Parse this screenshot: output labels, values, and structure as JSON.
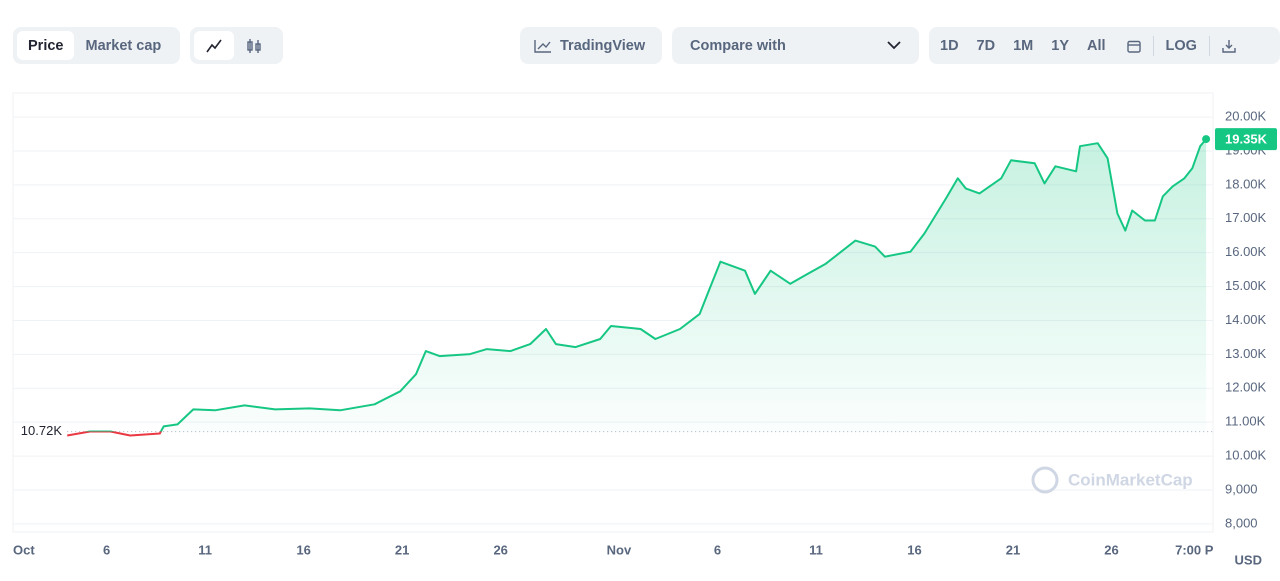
{
  "toolbar": {
    "tabs": [
      "Price",
      "Market cap"
    ],
    "tradingview": "TradingView",
    "compare": "Compare with",
    "ranges": [
      "1D",
      "7D",
      "1M",
      "1Y",
      "All"
    ],
    "log": "LOG"
  },
  "chart_data": {
    "type": "line",
    "color": "#16c784",
    "down_color": "#ea3943",
    "grid": true,
    "x": [
      3.0,
      4.16,
      5.2,
      6.2,
      7.7,
      7.9,
      8.6,
      9.4,
      10.5,
      12.0,
      13.55,
      15.3,
      16.85,
      18.6,
      19.9,
      20.7,
      21.2,
      21.9,
      23.45,
      24.3,
      25.5,
      26.5,
      27.3,
      27.8,
      28.8,
      30.05,
      30.6,
      32.1,
      32.85,
      34.1,
      35.1,
      35.6,
      36.15,
      37.4,
      37.9,
      38.7,
      39.7,
      40.5,
      41.5,
      43.0,
      44.0,
      44.5,
      45.8,
      46.5,
      47.6,
      48.2,
      48.6,
      49.3,
      50.4,
      50.9,
      52.1,
      52.6,
      53.15,
      54.2,
      54.4,
      55.3,
      55.8,
      56.3,
      56.7,
      57.05,
      57.7,
      58.2,
      58.6,
      59.1,
      59.7,
      60.1,
      60.5,
      60.8
    ],
    "values": [
      10607,
      10726,
      10726,
      10607,
      10667,
      10874,
      10933,
      11378,
      11350,
      11496,
      11378,
      11407,
      11350,
      11526,
      11911,
      12415,
      13096,
      12948,
      13007,
      13156,
      13096,
      13304,
      13748,
      13304,
      13215,
      13452,
      13837,
      13748,
      13452,
      13748,
      14193,
      14933,
      15733,
      15467,
      14785,
      15467,
      15081,
      15348,
      15674,
      16356,
      16178,
      15881,
      16030,
      16563,
      17600,
      18193,
      17896,
      17748,
      18193,
      18726,
      18637,
      18044,
      18548,
      18400,
      19141,
      19230,
      18785,
      17156,
      16652,
      17244,
      16948,
      16948,
      17659,
      17956,
      18193,
      18489,
      19141,
      19350
    ],
    "xlim": [
      0.25,
      61.15
    ],
    "xticks": [
      {
        "value": 0.25,
        "label": "Oct"
      },
      {
        "value": 5,
        "label": "6"
      },
      {
        "value": 10,
        "label": "11"
      },
      {
        "value": 15,
        "label": "16"
      },
      {
        "value": 20,
        "label": "21"
      },
      {
        "value": 25,
        "label": "26"
      },
      {
        "value": 31,
        "label": "Nov"
      },
      {
        "value": 36,
        "label": "6"
      },
      {
        "value": 41,
        "label": "11"
      },
      {
        "value": 46,
        "label": "16"
      },
      {
        "value": 51,
        "label": "21"
      },
      {
        "value": 56,
        "label": "26"
      },
      {
        "value": 60.2,
        "label": "7:00 P"
      }
    ],
    "ylim": [
      7760,
      20710
    ],
    "yticks": [
      {
        "value": 8000,
        "label": "8,000"
      },
      {
        "value": 9000,
        "label": "9,000"
      },
      {
        "value": 10000,
        "label": "10.00K"
      },
      {
        "value": 11000,
        "label": "11.00K"
      },
      {
        "value": 12000,
        "label": "12.00K"
      },
      {
        "value": 13000,
        "label": "13.00K"
      },
      {
        "value": 14000,
        "label": "14.00K"
      },
      {
        "value": 15000,
        "label": "15.00K"
      },
      {
        "value": 16000,
        "label": "16.00K"
      },
      {
        "value": 17000,
        "label": "17.00K"
      },
      {
        "value": 18000,
        "label": "18.00K"
      },
      {
        "value": 19000,
        "label": "19.00K"
      },
      {
        "value": 20000,
        "label": "20.00K"
      }
    ],
    "baseline": {
      "value": 10720,
      "label": "10.72K"
    },
    "current": {
      "value": 19350,
      "label": "19.35K"
    },
    "watermark": "CoinMarketCap",
    "currency": "USD"
  }
}
